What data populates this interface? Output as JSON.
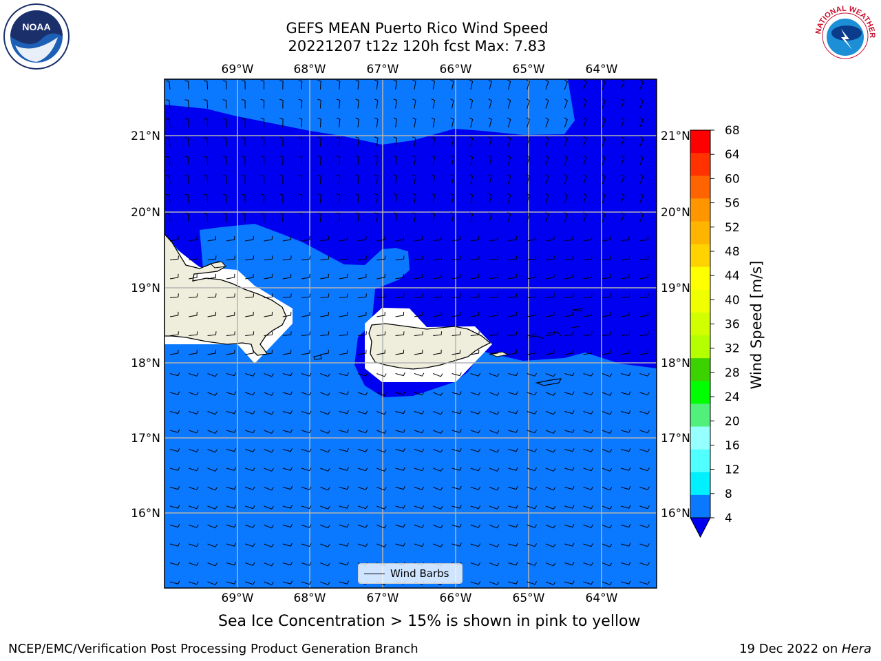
{
  "header": {
    "title_line1": "GEFS MEAN Puerto Rico Wind Speed",
    "title_line2": "20221207 t12z 120h fcst   Max: 7.83"
  },
  "logos": {
    "left": "noaa-logo",
    "left_text": "NOAA",
    "right": "nws-logo",
    "right_text": "NATIONAL WEATHER SERVICE"
  },
  "map": {
    "lon_labels": [
      "69°W",
      "68°W",
      "67°W",
      "66°W",
      "65°W",
      "64°W"
    ],
    "lat_labels": [
      "21°N",
      "20°N",
      "19°N",
      "18°N",
      "17°N",
      "16°N"
    ],
    "colors": {
      "band_4_8": "#0a78ff",
      "below_4": "#0000f0",
      "land": "#efeedc",
      "grid": "#b4b4b4"
    }
  },
  "colorbar": {
    "label": "Wind Speed [m/s]",
    "ticks": [
      "68",
      "64",
      "60",
      "56",
      "52",
      "48",
      "44",
      "40",
      "36",
      "32",
      "28",
      "24",
      "20",
      "16",
      "12",
      "8",
      "4"
    ],
    "colors": [
      "#ff0000",
      "#ff3200",
      "#ff6400",
      "#ff9600",
      "#ffb400",
      "#ffd200",
      "#ffff00",
      "#f0ff00",
      "#d2ff00",
      "#b4ff00",
      "#3cd200",
      "#00ff00",
      "#50f07a",
      "#96ffff",
      "#50ffff",
      "#00f0ff",
      "#0a78ff"
    ],
    "extend_color": "#0000f0"
  },
  "legend": {
    "label": "Wind Barbs"
  },
  "note": "Sea Ice Concentration > 15% is shown in pink to yellow",
  "footer": {
    "left": "NCEP/EMC/Verification Post Processing Product Generation Branch",
    "right_prefix": "19 Dec 2022 on ",
    "right_host": "Hera"
  }
}
